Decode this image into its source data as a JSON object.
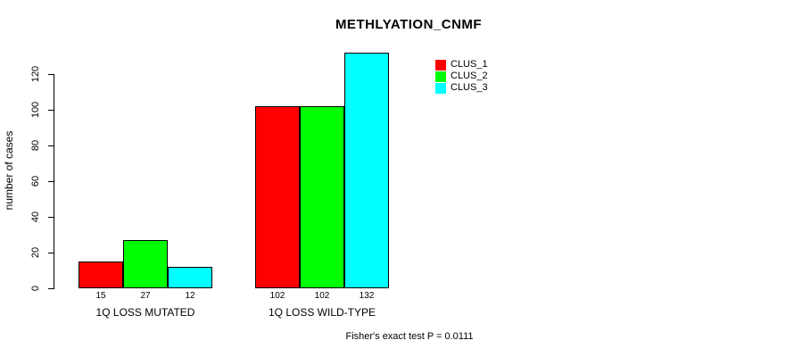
{
  "chart_data": {
    "type": "bar",
    "title": "METHLYATION_CNMF",
    "xlabel": "",
    "ylabel": "number of cases",
    "categories": [
      "1Q LOSS MUTATED",
      "1Q LOSS WILD-TYPE"
    ],
    "series": [
      {
        "name": "CLUS_1",
        "color": "#FF0000",
        "values": [
          15,
          102
        ]
      },
      {
        "name": "CLUS_2",
        "color": "#00FF00",
        "values": [
          27,
          102
        ]
      },
      {
        "name": "CLUS_3",
        "color": "#00FFFF",
        "values": [
          12,
          132
        ]
      }
    ],
    "yticks": [
      0,
      20,
      40,
      60,
      80,
      100,
      120
    ],
    "ylim": [
      0,
      135
    ],
    "bar_value_labels": [
      [
        15,
        27,
        12
      ],
      [
        102,
        102,
        132
      ]
    ],
    "legend_position": "top-right",
    "legend_entries": [
      "CLUS_1",
      "CLUS_2",
      "CLUS_3"
    ],
    "grid": "off",
    "annotation": "Fisher's exact test P = 0.0111",
    "colors": {
      "background": "#FFFFFF",
      "axis": "#000000",
      "text": "#000000"
    }
  }
}
